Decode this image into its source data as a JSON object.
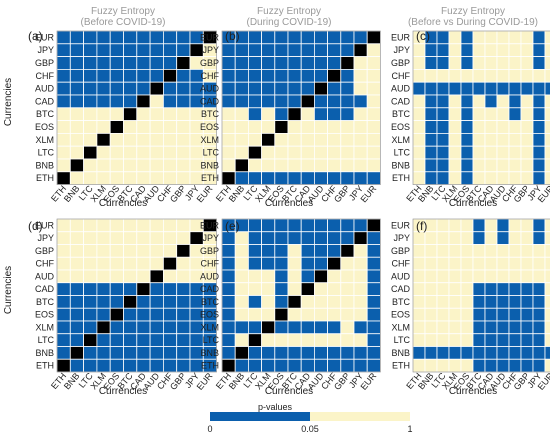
{
  "colors": {
    "significant": "#0b5fad",
    "not_significant": "#fbf4c8",
    "diagonal": "#000000",
    "grid": "#ffffff",
    "title": "#9a9a9a"
  },
  "colorbar": {
    "title": "p-values",
    "tick_labels": [
      "0",
      "0.05",
      "1"
    ]
  },
  "chart_data": [
    {
      "type": "heatmap",
      "panel_label": "(a)",
      "title": [
        "Fuzzy Entropy",
        "(Before COVID-19)"
      ],
      "xlabel": "Currencies",
      "ylabel": "Currencies",
      "x_categories": [
        "ETH",
        "BNB",
        "LTC",
        "XLM",
        "EOS",
        "BTC",
        "CAD",
        "AUD",
        "CHF",
        "GBP",
        "JPY",
        "EUR"
      ],
      "y_categories": [
        "EUR",
        "JPY",
        "GBP",
        "CHF",
        "AUD",
        "CAD",
        "BTC",
        "EOS",
        "XLM",
        "LTC",
        "BNB",
        "ETH"
      ],
      "values": [
        "BBBBBBBBBBBD",
        "BBBBBBBBBBDY",
        "BBBBBBBBBDYY",
        "BBBBBBBBDBBY",
        "BBBBBBBDBBBB",
        "BBBBBBDYBBBB",
        "YYYYYDYYYYYY",
        "YYYYDYYYYYYY",
        "YYYDYYYYYYYY",
        "YYDYYYYYYYYY",
        "YDYYYYYYYYYY",
        "DYYYYYYYYYYY"
      ]
    },
    {
      "type": "heatmap",
      "panel_label": "(b)",
      "title": [
        "Fuzzy Entropy",
        "(During COVID-19)"
      ],
      "xlabel": "Currencies",
      "ylabel": "Currencies",
      "x_categories": [
        "ETH",
        "BNB",
        "LTC",
        "XLM",
        "EOS",
        "BTC",
        "CAD",
        "AUD",
        "CHF",
        "GBP",
        "JPY",
        "EUR"
      ],
      "y_categories": [
        "EUR",
        "JPY",
        "GBP",
        "CHF",
        "AUD",
        "CAD",
        "BTC",
        "EOS",
        "XLM",
        "LTC",
        "BNB",
        "ETH"
      ],
      "values": [
        "BBBBBBBBBBBD",
        "BBBBBBBBBBDY",
        "BBBBBBBBBDYY",
        "BBBBBBBBDBYY",
        "BBBBBBBDBBYY",
        "BBBBBBDBBBBY",
        "YYBYBDYBBBYY",
        "YYYYDYYYYYYY",
        "YYYDYYYYYYYY",
        "YYDYYYYYYYYY",
        "YDYYYYYYYYYY",
        "DBBBBBBBBBBB"
      ]
    },
    {
      "type": "heatmap",
      "panel_label": "(c)",
      "title": [
        "Fuzzy Entropy",
        "(Before vs During COVID-19)"
      ],
      "xlabel": "Currencies",
      "ylabel": "Currencies",
      "x_categories": [
        "ETH",
        "BNB",
        "LTC",
        "XLM",
        "EOS",
        "BTC",
        "CAD",
        "AUD",
        "CHF",
        "GBP",
        "JPY",
        "EUR"
      ],
      "y_categories": [
        "EUR",
        "JPY",
        "GBP",
        "CHF",
        "AUD",
        "CAD",
        "BTC",
        "EOS",
        "XLM",
        "LTC",
        "BNB",
        "ETH"
      ],
      "values": [
        "YBBYBYYYYYBY",
        "YBBYBYYYYYBY",
        "YBBYBYYYYYBY",
        "YYYYYYYYYYYY",
        "BBBBBBBBBBBB",
        "YBBYBYBYBYBY",
        "YBBYBYYYBYBY",
        "YBBYBYYYYYBY",
        "YBBYBYYYYYBY",
        "YBBYBYYYYYBY",
        "YBBYBYYYYYBY",
        "YBBYBYYYYYBY"
      ]
    },
    {
      "type": "heatmap",
      "panel_label": "(d)",
      "title": [],
      "xlabel": "Currencies",
      "ylabel": "Currencies",
      "x_categories": [
        "ETH",
        "BNB",
        "LTC",
        "XLM",
        "EOS",
        "BTC",
        "CAD",
        "AUD",
        "CHF",
        "GBP",
        "JPY",
        "EUR"
      ],
      "y_categories": [
        "EUR",
        "JPY",
        "GBP",
        "CHF",
        "AUD",
        "CAD",
        "BTC",
        "EOS",
        "XLM",
        "LTC",
        "BNB",
        "ETH"
      ],
      "values": [
        "YYYYYYYYYYYD",
        "YYYYYYYYYYDY",
        "YYYYYYYYYDYY",
        "YYYYYYYYDYYY",
        "YYYYYYYDYYYY",
        "BBBBBBDBBBBB",
        "BBBBBDBBBBBB",
        "BBBBDBBBBBBB",
        "BBBDBBBBBBBB",
        "BBDBBBBBBBBB",
        "BDBBBBBBBBBB",
        "DBBBBBBBBBBB"
      ]
    },
    {
      "type": "heatmap",
      "panel_label": "(e)",
      "title": [],
      "xlabel": "Currencies",
      "ylabel": "Currencies",
      "x_categories": [
        "ETH",
        "BNB",
        "LTC",
        "XLM",
        "EOS",
        "BTC",
        "CAD",
        "AUD",
        "CHF",
        "GBP",
        "JPY",
        "EUR"
      ],
      "y_categories": [
        "EUR",
        "JPY",
        "GBP",
        "CHF",
        "AUD",
        "CAD",
        "BTC",
        "EOS",
        "XLM",
        "LTC",
        "BNB",
        "ETH"
      ],
      "values": [
        "BBBBBBBBBBBD",
        "BYBBBBBBBBDB",
        "BYBBBYBBBDYB",
        "BYBBBYBBDYYB",
        "BYYYBYBDYYYB",
        "BYYYBYDYYYYB",
        "BYBYBDYYYYYB",
        "BYYYDYYYYYYB",
        "BBBDBBBBBYBB",
        "BYDYYYYYYYYB",
        "BDBBBBBBBBBB",
        "DBBBBBBBBBBB"
      ]
    },
    {
      "type": "heatmap",
      "panel_label": "(f)",
      "title": [],
      "xlabel": "Currencies",
      "ylabel": "Currencies",
      "x_categories": [
        "ETH",
        "BNB",
        "LTC",
        "XLM",
        "EOS",
        "BTC",
        "CAD",
        "AUD",
        "CHF",
        "GBP",
        "JPY",
        "EUR"
      ],
      "y_categories": [
        "EUR",
        "JPY",
        "GBP",
        "CHF",
        "AUD",
        "CAD",
        "BTC",
        "EOS",
        "XLM",
        "LTC",
        "BNB",
        "ETH"
      ],
      "values": [
        "YYYYYBYBYYBY",
        "YYYYYBYBYYBY",
        "YYYYYYYYYYYY",
        "YYYYYYYYYYYY",
        "YYYYYYYYYYYY",
        "YYYYYBBBBBBY",
        "YYYYYBBBBBBY",
        "YYYYYBBBBBBY",
        "YYYYYBBBBBBY",
        "YYYYYBBBBBBY",
        "BBBBBBBBBBBB",
        "YYYYYBBBBBBY"
      ]
    }
  ]
}
